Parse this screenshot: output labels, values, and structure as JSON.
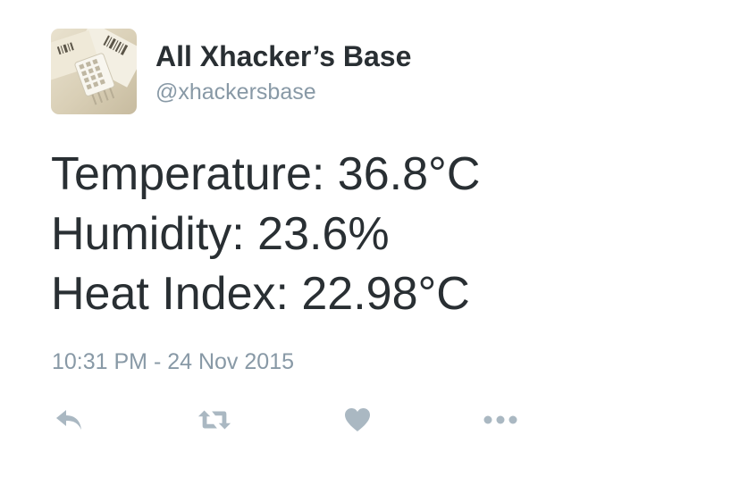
{
  "author": {
    "display_name": "All Xhacker’s Base",
    "handle": "@xhackersbase",
    "avatar_icon": "sensor-module-photo"
  },
  "tweet": {
    "lines": [
      "Temperature: 36.8°C",
      "Humidity: 23.6%",
      "Heat Index: 22.98°C"
    ],
    "timestamp": "10:31 PM - 24 Nov 2015"
  },
  "actions": {
    "reply_icon": "reply-icon",
    "retweet_icon": "retweet-icon",
    "like_icon": "heart-icon",
    "more_icon": "more-icon"
  },
  "colors": {
    "text": "#292f33",
    "muted": "#8899a6",
    "icon": "#aab8c2"
  }
}
